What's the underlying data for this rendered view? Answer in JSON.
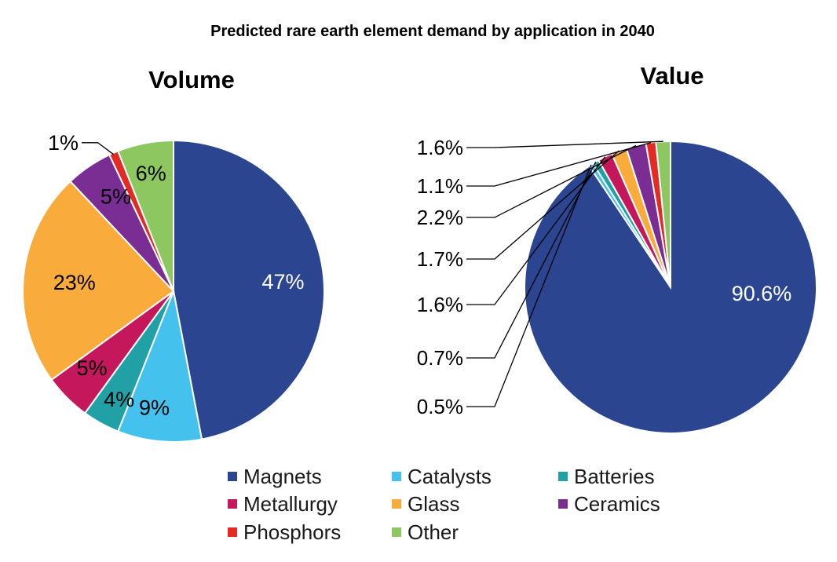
{
  "chart_data": {
    "type": "pie",
    "title": "Predicted rare earth element demand by application in 2040",
    "categories": [
      "Magnets",
      "Catalysts",
      "Batteries",
      "Metallurgy",
      "Glass",
      "Ceramics",
      "Phosphors",
      "Other"
    ],
    "colors": {
      "Magnets": "#2b4590",
      "Catalysts": "#45c1ed",
      "Batteries": "#21a0a6",
      "Metallurgy": "#c5175c",
      "Glass": "#f9ac3c",
      "Ceramics": "#7a2d93",
      "Phosphors": "#e42a25",
      "Other": "#8cc760"
    },
    "series": [
      {
        "name": "Volume",
        "title": "Volume",
        "values": [
          47,
          9,
          4,
          5,
          23,
          5,
          1,
          6
        ],
        "labels": [
          "47%",
          "9%",
          "4%",
          "5%",
          "23%",
          "5%",
          "1%",
          "6%"
        ]
      },
      {
        "name": "Value",
        "title": "Value",
        "values": [
          90.6,
          0.5,
          0.7,
          1.6,
          1.7,
          2.2,
          1.1,
          1.6
        ],
        "labels": [
          "90.6%",
          "0.5%",
          "0.7%",
          "1.6%",
          "1.7%",
          "2.2%",
          "1.1%",
          "1.6%"
        ]
      }
    ],
    "legend": {
      "position": "bottom",
      "items": [
        "Magnets",
        "Catalysts",
        "Batteries",
        "Metallurgy",
        "Glass",
        "Ceramics",
        "Phosphors",
        "Other"
      ]
    }
  }
}
